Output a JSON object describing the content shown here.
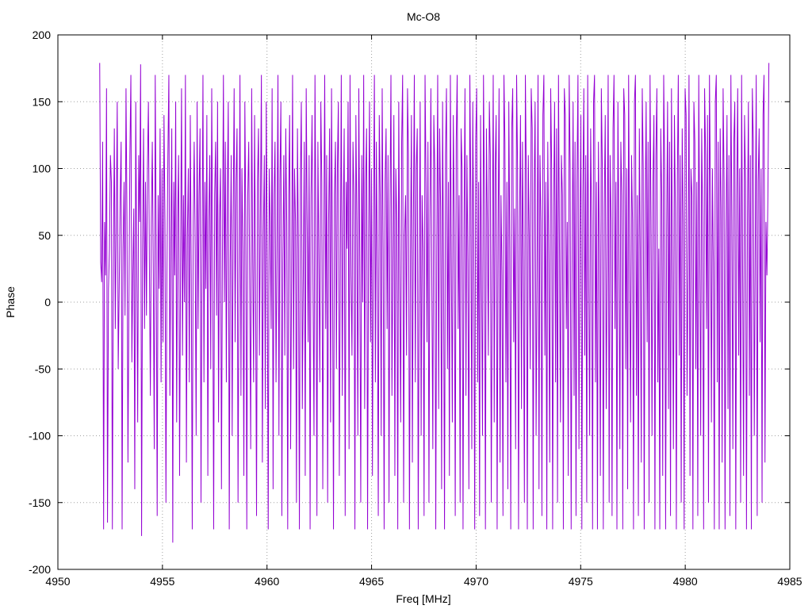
{
  "chart_data": {
    "type": "line",
    "title": "Mc-O8",
    "xlabel": "Freq [MHz]",
    "ylabel": "Phase",
    "xlim": [
      4950,
      4985
    ],
    "ylim": [
      -200,
      200
    ],
    "xticks": [
      4950,
      4955,
      4960,
      4965,
      4970,
      4975,
      4980,
      4985
    ],
    "yticks": [
      -200,
      -150,
      -100,
      -50,
      0,
      50,
      100,
      150,
      200
    ],
    "grid": true,
    "series": [
      {
        "color": "#9400d3",
        "x_start": 4952,
        "x_end": 4984,
        "x_step": 0.04,
        "values": [
          179,
          30,
          15,
          120,
          -170,
          60,
          20,
          160,
          -165,
          10,
          40,
          110,
          90,
          -170,
          25,
          130,
          -20,
          60,
          150,
          -50,
          10,
          80,
          120,
          -170,
          40,
          90,
          -10,
          160,
          60,
          -120,
          0,
          110,
          170,
          -45,
          20,
          70,
          -140,
          150,
          30,
          -90,
          110,
          60,
          178,
          -175,
          40,
          130,
          -20,
          90,
          -10,
          100,
          150,
          30,
          -70,
          60,
          120,
          20,
          -110,
          170,
          40,
          -160,
          80,
          10,
          130,
          -60,
          100,
          -30,
          140,
          60,
          -150,
          20,
          110,
          170,
          -70,
          40,
          130,
          -180,
          90,
          20,
          150,
          -90,
          60,
          110,
          -130,
          30,
          160,
          -40,
          80,
          0,
          170,
          -120,
          50,
          100,
          -60,
          140,
          20,
          -170,
          60,
          120,
          40,
          -100,
          150,
          -20,
          80,
          130,
          -150,
          30,
          170,
          -60,
          90,
          10,
          140,
          -130,
          60,
          110,
          -50,
          160,
          30,
          -170,
          80,
          120,
          -10,
          150,
          -90,
          60,
          100,
          -140,
          40,
          170,
          0,
          120,
          -60,
          80,
          150,
          -170,
          30,
          110,
          -100,
          60,
          160,
          -30,
          90,
          130,
          -150,
          20,
          170,
          -70,
          100,
          40,
          -130,
          150,
          60,
          -170,
          80,
          120,
          10,
          -110,
          160,
          40,
          -60,
          140,
          20,
          -160,
          90,
          130,
          -40,
          70,
          170,
          -120,
          50,
          110,
          -80,
          150,
          30,
          -170,
          100,
          60,
          -20,
          160,
          -140,
          80,
          120,
          -60,
          40,
          170,
          -100,
          90,
          150,
          -160,
          30,
          110,
          -40,
          130,
          60,
          -170,
          80,
          140,
          -110,
          20,
          170,
          -50,
          100,
          60,
          -150,
          130,
          40,
          -170,
          90,
          150,
          -80,
          20,
          120,
          -130,
          160,
          60,
          -30,
          110,
          -170,
          80,
          140,
          10,
          -100,
          170,
          50,
          -160,
          120,
          30,
          -60,
          150,
          90,
          -140,
          40,
          170,
          -20,
          110,
          -150,
          60,
          130,
          -90,
          160,
          30,
          -170,
          80,
          120,
          -50,
          100,
          150,
          -130,
          20,
          170,
          -70,
          60,
          130,
          -160,
          90,
          40,
          150,
          -110,
          170,
          20,
          -40,
          120,
          80,
          -170,
          140,
          60,
          -100,
          160,
          30,
          -150,
          110,
          0,
          170,
          -80,
          90,
          130,
          -170,
          50,
          150,
          -30,
          100,
          -130,
          60,
          170,
          -60,
          120,
          20,
          -160,
          140,
          80,
          -100,
          160,
          40,
          -170,
          90,
          130,
          -20,
          110,
          -150,
          70,
          170,
          -70,
          30,
          140,
          -130,
          100,
          60,
          -170,
          150,
          20,
          -90,
          120,
          170,
          -150,
          50,
          80,
          -40,
          160,
          110,
          -170,
          30,
          140,
          -120,
          60,
          170,
          -60,
          100,
          130,
          -170,
          20,
          150,
          -100,
          80,
          40,
          -160,
          170,
          90,
          -30,
          120,
          -150,
          60,
          160,
          10,
          -110,
          140,
          100,
          -170,
          40,
          170,
          -80,
          130,
          70,
          -140,
          150,
          20,
          -170,
          110,
          160,
          -50,
          90,
          -130,
          170,
          30,
          -90,
          140,
          60,
          -160,
          120,
          170,
          -20,
          80,
          -150,
          130,
          100,
          -170,
          50,
          160,
          -70,
          110,
          30,
          -140,
          170,
          80,
          -110,
          150,
          40,
          -170,
          120,
          160,
          -60,
          90,
          -160,
          140,
          20,
          -100,
          170,
          70,
          -170,
          130,
          60,
          -40,
          150,
          110,
          -150,
          30,
          170,
          -90,
          100,
          140,
          -170,
          50,
          160,
          -120,
          80,
          20,
          -160,
          170,
          120,
          -60,
          90,
          -140,
          150,
          40,
          -170,
          130,
          160,
          -30,
          70,
          -110,
          170,
          100,
          -170,
          60,
          140,
          -80,
          120,
          30,
          -150,
          170,
          90,
          -170,
          110,
          50,
          -50,
          160,
          130,
          -170,
          80,
          150,
          -100,
          20,
          170,
          -140,
          110,
          60,
          -160,
          140,
          170,
          -40,
          90,
          -170,
          120,
          30,
          -120,
          160,
          100,
          -170,
          70,
          150,
          -60,
          130,
          -150,
          170,
          40,
          -90,
          110,
          80,
          -170,
          160,
          140,
          -20,
          60,
          -130,
          170,
          100,
          -170,
          30,
          150,
          -70,
          120,
          -160,
          90,
          170,
          -110,
          50,
          140,
          -170,
          80,
          160,
          -40,
          110,
          -150,
          170,
          20,
          -100,
          130,
          60,
          -170,
          150,
          170,
          -60,
          90,
          -170,
          120,
          40,
          -130,
          160,
          100,
          -170,
          70,
          140,
          -80,
          30,
          170,
          -150,
          110,
          60,
          -160,
          130,
          170,
          -20,
          90,
          -170,
          150,
          50,
          -110,
          120,
          80,
          -170,
          160,
          140,
          -50,
          100,
          -140,
          170,
          30,
          -90,
          110,
          60,
          -170,
          150,
          170,
          -70,
          80,
          -160,
          130,
          40,
          -120,
          160,
          100,
          -170,
          70,
          150,
          -30,
          120,
          -150,
          170,
          60,
          -100,
          90,
          140,
          -170,
          110,
          160,
          -60,
          40,
          -170,
          130,
          80,
          -130,
          170,
          100,
          -170,
          50,
          150,
          -80,
          120,
          -160,
          160,
          30,
          -110,
          140,
          70,
          -170,
          90,
          170,
          -40,
          110,
          -150,
          130,
          60,
          -170,
          160,
          140,
          -70,
          20,
          170,
          -130,
          100,
          80,
          -170,
          150,
          120,
          -50,
          90,
          -160,
          170,
          40,
          -100,
          130,
          60,
          -170,
          160,
          110,
          -20,
          140,
          -150,
          170,
          80,
          -90,
          100,
          30,
          -170,
          150,
          170,
          -60,
          120,
          -170,
          130,
          70,
          -120,
          160,
          90,
          -170,
          50,
          140,
          -80,
          110,
          -160,
          170,
          60,
          -110,
          120,
          150,
          -170,
          80,
          160,
          -40,
          100,
          -150,
          170,
          30,
          -130,
          140,
          90,
          -170,
          60,
          150,
          -70,
          110,
          -170,
          160,
          120,
          -100,
          40,
          170,
          -160,
          90,
          130,
          -30,
          100,
          -150,
          140,
          170,
          -120,
          60,
          20,
          80,
          179
        ]
      }
    ]
  }
}
